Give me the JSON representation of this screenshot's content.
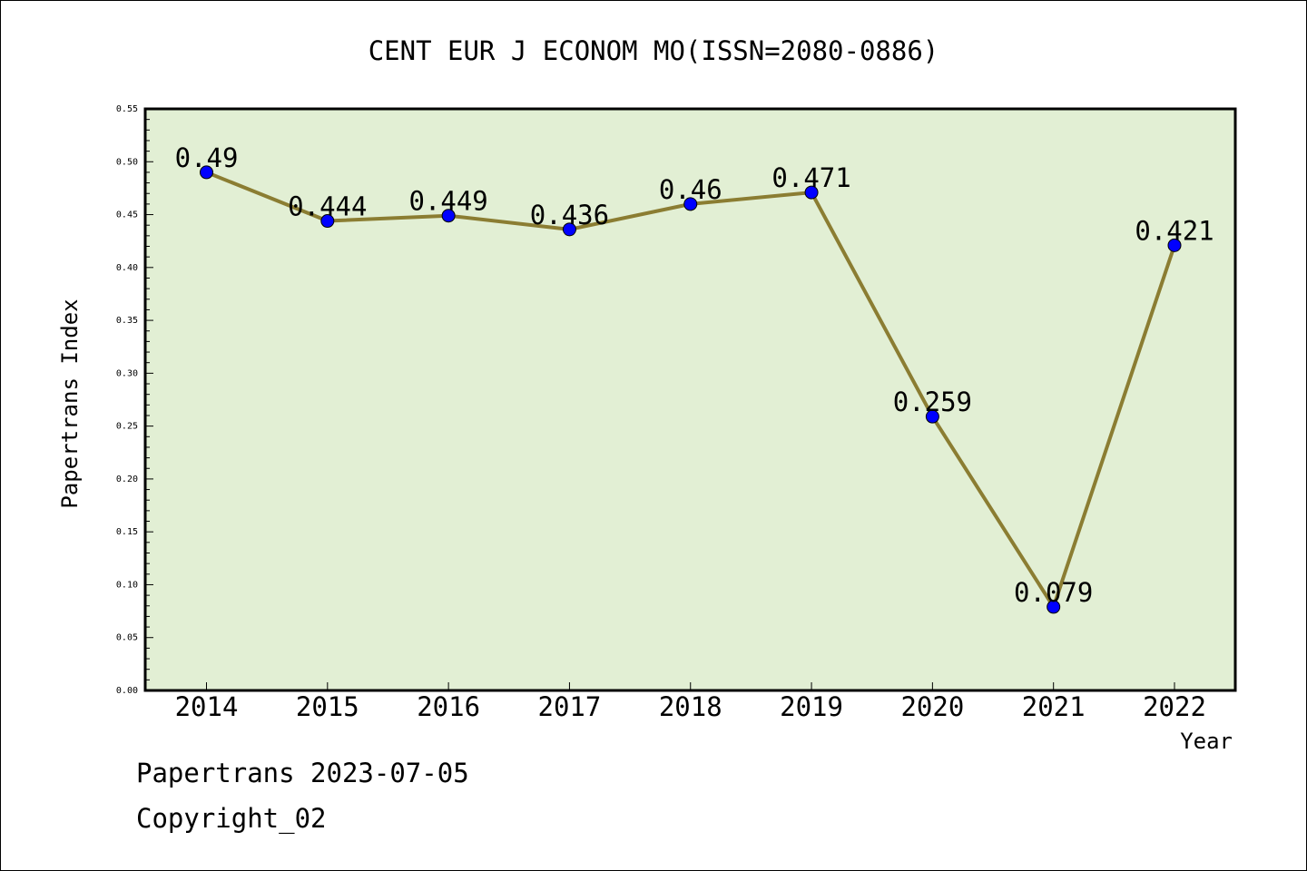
{
  "chart_data": {
    "type": "line",
    "title": "CENT EUR J ECONOM MO(ISSN=2080-0886)",
    "xlabel": "Year",
    "ylabel": "Papertrans Index",
    "categories": [
      "2014",
      "2015",
      "2016",
      "2017",
      "2018",
      "2019",
      "2020",
      "2021",
      "2022"
    ],
    "series": [
      {
        "values": [
          0.49,
          0.444,
          0.449,
          0.436,
          0.46,
          0.471,
          0.259,
          0.079,
          0.421
        ],
        "labels": [
          "0.49",
          "0.444",
          "0.449",
          "0.436",
          "0.46",
          "0.471",
          "0.259",
          "0.079",
          "0.421"
        ]
      }
    ],
    "ylim": [
      0,
      0.55
    ],
    "yticks": [
      "0.00",
      "0.05",
      "0.10",
      "0.15",
      "0.20",
      "0.25",
      "0.30",
      "0.35",
      "0.40",
      "0.45",
      "0.50",
      "0.55"
    ],
    "grid": false,
    "colors": {
      "line": "#8b7d32",
      "marker": "#0000ff",
      "plot_bg": "#e2efd4"
    }
  },
  "footer": {
    "line1": "Papertrans 2023-07-05",
    "line2": "Copyright_02"
  }
}
